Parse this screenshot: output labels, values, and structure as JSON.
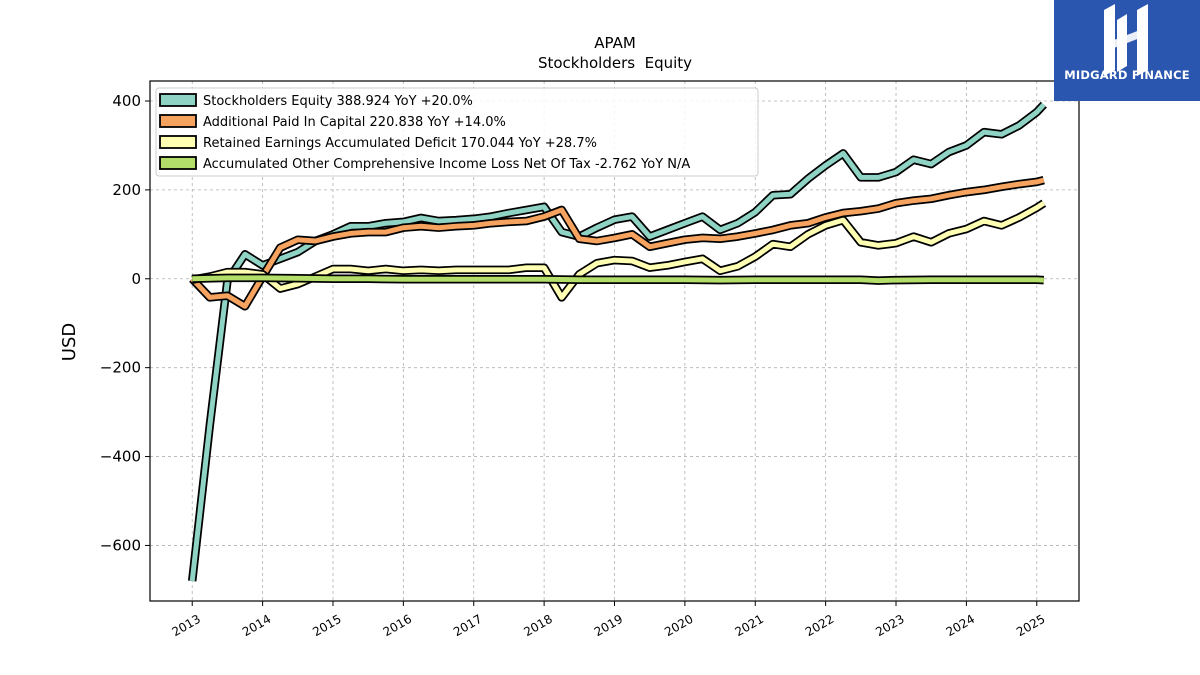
{
  "chart_data": {
    "type": "line",
    "title": "APAM",
    "subtitle": "Stockholders  Equity",
    "ylabel": "USD",
    "xlabel": "",
    "xlim": [
      2012.4,
      2025.6
    ],
    "ylim": [
      -725,
      445
    ],
    "yticks": [
      400,
      200,
      0,
      -200,
      -400,
      -600
    ],
    "ytick_labels": [
      "400",
      "200",
      "0",
      "−200",
      "−400",
      "−600"
    ],
    "xticks": [
      2013,
      2014,
      2015,
      2016,
      2017,
      2018,
      2019,
      2020,
      2021,
      2022,
      2023,
      2024,
      2025
    ],
    "xtick_labels": [
      "2013",
      "2014",
      "2015",
      "2016",
      "2017",
      "2018",
      "2019",
      "2020",
      "2021",
      "2022",
      "2023",
      "2024",
      "2025"
    ],
    "grid": true,
    "legend_position": "top-left",
    "series": [
      {
        "name": "Stockholders Equity  388.924 YoY +20.0%",
        "color": "#8fd3c5",
        "points": [
          [
            2013.0,
            -680
          ],
          [
            2013.25,
            -330
          ],
          [
            2013.5,
            -5
          ],
          [
            2013.75,
            55
          ],
          [
            2014.0,
            30
          ],
          [
            2014.25,
            45
          ],
          [
            2014.5,
            60
          ],
          [
            2014.75,
            85
          ],
          [
            2015.0,
            100
          ],
          [
            2015.25,
            118
          ],
          [
            2015.5,
            118
          ],
          [
            2015.75,
            125
          ],
          [
            2016.0,
            128
          ],
          [
            2016.25,
            137
          ],
          [
            2016.5,
            130
          ],
          [
            2016.75,
            132
          ],
          [
            2017.0,
            135
          ],
          [
            2017.25,
            140
          ],
          [
            2017.5,
            148
          ],
          [
            2017.75,
            155
          ],
          [
            2018.0,
            162
          ],
          [
            2018.25,
            105
          ],
          [
            2018.5,
            95
          ],
          [
            2018.75,
            115
          ],
          [
            2019.0,
            133
          ],
          [
            2019.25,
            140
          ],
          [
            2019.5,
            95
          ],
          [
            2019.75,
            110
          ],
          [
            2020.0,
            125
          ],
          [
            2020.25,
            140
          ],
          [
            2020.5,
            110
          ],
          [
            2020.75,
            125
          ],
          [
            2021.0,
            150
          ],
          [
            2021.25,
            188
          ],
          [
            2021.5,
            190
          ],
          [
            2021.75,
            225
          ],
          [
            2022.0,
            255
          ],
          [
            2022.25,
            282
          ],
          [
            2022.5,
            228
          ],
          [
            2022.75,
            228
          ],
          [
            2023.0,
            240
          ],
          [
            2023.25,
            268
          ],
          [
            2023.5,
            258
          ],
          [
            2023.75,
            285
          ],
          [
            2024.0,
            300
          ],
          [
            2024.25,
            330
          ],
          [
            2024.5,
            325
          ],
          [
            2024.75,
            345
          ],
          [
            2025.0,
            375
          ],
          [
            2025.1,
            392
          ]
        ]
      },
      {
        "name": "Additional Paid In Capital  220.838 YoY +14.0%",
        "color": "#f6a35f",
        "points": [
          [
            2013.0,
            0
          ],
          [
            2013.25,
            -42
          ],
          [
            2013.5,
            -38
          ],
          [
            2013.75,
            -62
          ],
          [
            2014.0,
            5
          ],
          [
            2014.25,
            70
          ],
          [
            2014.5,
            88
          ],
          [
            2014.75,
            85
          ],
          [
            2015.0,
            95
          ],
          [
            2015.25,
            102
          ],
          [
            2015.5,
            105
          ],
          [
            2015.75,
            105
          ],
          [
            2016.0,
            115
          ],
          [
            2016.25,
            118
          ],
          [
            2016.5,
            115
          ],
          [
            2016.75,
            118
          ],
          [
            2017.0,
            120
          ],
          [
            2017.25,
            125
          ],
          [
            2017.5,
            128
          ],
          [
            2017.75,
            130
          ],
          [
            2018.0,
            140
          ],
          [
            2018.25,
            155
          ],
          [
            2018.5,
            90
          ],
          [
            2018.75,
            85
          ],
          [
            2019.0,
            92
          ],
          [
            2019.25,
            100
          ],
          [
            2019.5,
            72
          ],
          [
            2019.75,
            80
          ],
          [
            2020.0,
            88
          ],
          [
            2020.25,
            92
          ],
          [
            2020.5,
            90
          ],
          [
            2020.75,
            95
          ],
          [
            2021.0,
            102
          ],
          [
            2021.25,
            110
          ],
          [
            2021.5,
            120
          ],
          [
            2021.75,
            125
          ],
          [
            2022.0,
            138
          ],
          [
            2022.25,
            148
          ],
          [
            2022.5,
            152
          ],
          [
            2022.75,
            158
          ],
          [
            2023.0,
            170
          ],
          [
            2023.25,
            176
          ],
          [
            2023.5,
            180
          ],
          [
            2023.75,
            188
          ],
          [
            2024.0,
            195
          ],
          [
            2024.25,
            200
          ],
          [
            2024.5,
            207
          ],
          [
            2024.75,
            213
          ],
          [
            2025.0,
            218
          ],
          [
            2025.1,
            222
          ]
        ]
      },
      {
        "name": "Retained Earnings Accumulated Deficit  170.044 YoY +28.7%",
        "color": "#ffffb3",
        "points": [
          [
            2013.0,
            -2
          ],
          [
            2013.25,
            5
          ],
          [
            2013.5,
            15
          ],
          [
            2013.75,
            15
          ],
          [
            2014.0,
            10
          ],
          [
            2014.25,
            -22
          ],
          [
            2014.5,
            -12
          ],
          [
            2014.75,
            5
          ],
          [
            2015.0,
            22
          ],
          [
            2015.25,
            22
          ],
          [
            2015.5,
            18
          ],
          [
            2015.75,
            22
          ],
          [
            2016.0,
            18
          ],
          [
            2016.25,
            20
          ],
          [
            2016.5,
            18
          ],
          [
            2016.75,
            20
          ],
          [
            2017.0,
            20
          ],
          [
            2017.25,
            20
          ],
          [
            2017.5,
            20
          ],
          [
            2017.75,
            25
          ],
          [
            2018.0,
            25
          ],
          [
            2018.25,
            -42
          ],
          [
            2018.5,
            10
          ],
          [
            2018.75,
            35
          ],
          [
            2019.0,
            42
          ],
          [
            2019.25,
            40
          ],
          [
            2019.5,
            25
          ],
          [
            2019.75,
            30
          ],
          [
            2020.0,
            38
          ],
          [
            2020.25,
            45
          ],
          [
            2020.5,
            18
          ],
          [
            2020.75,
            28
          ],
          [
            2021.0,
            50
          ],
          [
            2021.25,
            78
          ],
          [
            2021.5,
            72
          ],
          [
            2021.75,
            100
          ],
          [
            2022.0,
            120
          ],
          [
            2022.25,
            132
          ],
          [
            2022.5,
            82
          ],
          [
            2022.75,
            75
          ],
          [
            2023.0,
            80
          ],
          [
            2023.25,
            95
          ],
          [
            2023.5,
            82
          ],
          [
            2023.75,
            102
          ],
          [
            2024.0,
            112
          ],
          [
            2024.25,
            130
          ],
          [
            2024.5,
            120
          ],
          [
            2024.75,
            138
          ],
          [
            2025.0,
            160
          ],
          [
            2025.1,
            170
          ]
        ]
      },
      {
        "name": "Accumulated Other Comprehensive Income Loss Net Of Tax  -2.762 YoY N/A",
        "color": "#b3de69",
        "points": [
          [
            2013.0,
            0
          ],
          [
            2013.5,
            2
          ],
          [
            2014.0,
            2
          ],
          [
            2014.5,
            1
          ],
          [
            2015.0,
            0
          ],
          [
            2015.5,
            0
          ],
          [
            2016.0,
            -1
          ],
          [
            2016.5,
            -1
          ],
          [
            2017.0,
            -1
          ],
          [
            2017.5,
            -1
          ],
          [
            2018.0,
            -1
          ],
          [
            2018.5,
            -2
          ],
          [
            2019.0,
            -2
          ],
          [
            2019.5,
            -2
          ],
          [
            2020.0,
            -2
          ],
          [
            2020.5,
            -3
          ],
          [
            2021.0,
            -2
          ],
          [
            2021.5,
            -2
          ],
          [
            2022.0,
            -2
          ],
          [
            2022.5,
            -2
          ],
          [
            2022.75,
            -4
          ],
          [
            2023.0,
            -3
          ],
          [
            2023.5,
            -2
          ],
          [
            2024.0,
            -2
          ],
          [
            2024.5,
            -2
          ],
          [
            2025.0,
            -2
          ],
          [
            2025.1,
            -3
          ]
        ]
      }
    ]
  },
  "logo": {
    "text": "MIDGARD FINANCE",
    "background": "#2a56b0"
  }
}
